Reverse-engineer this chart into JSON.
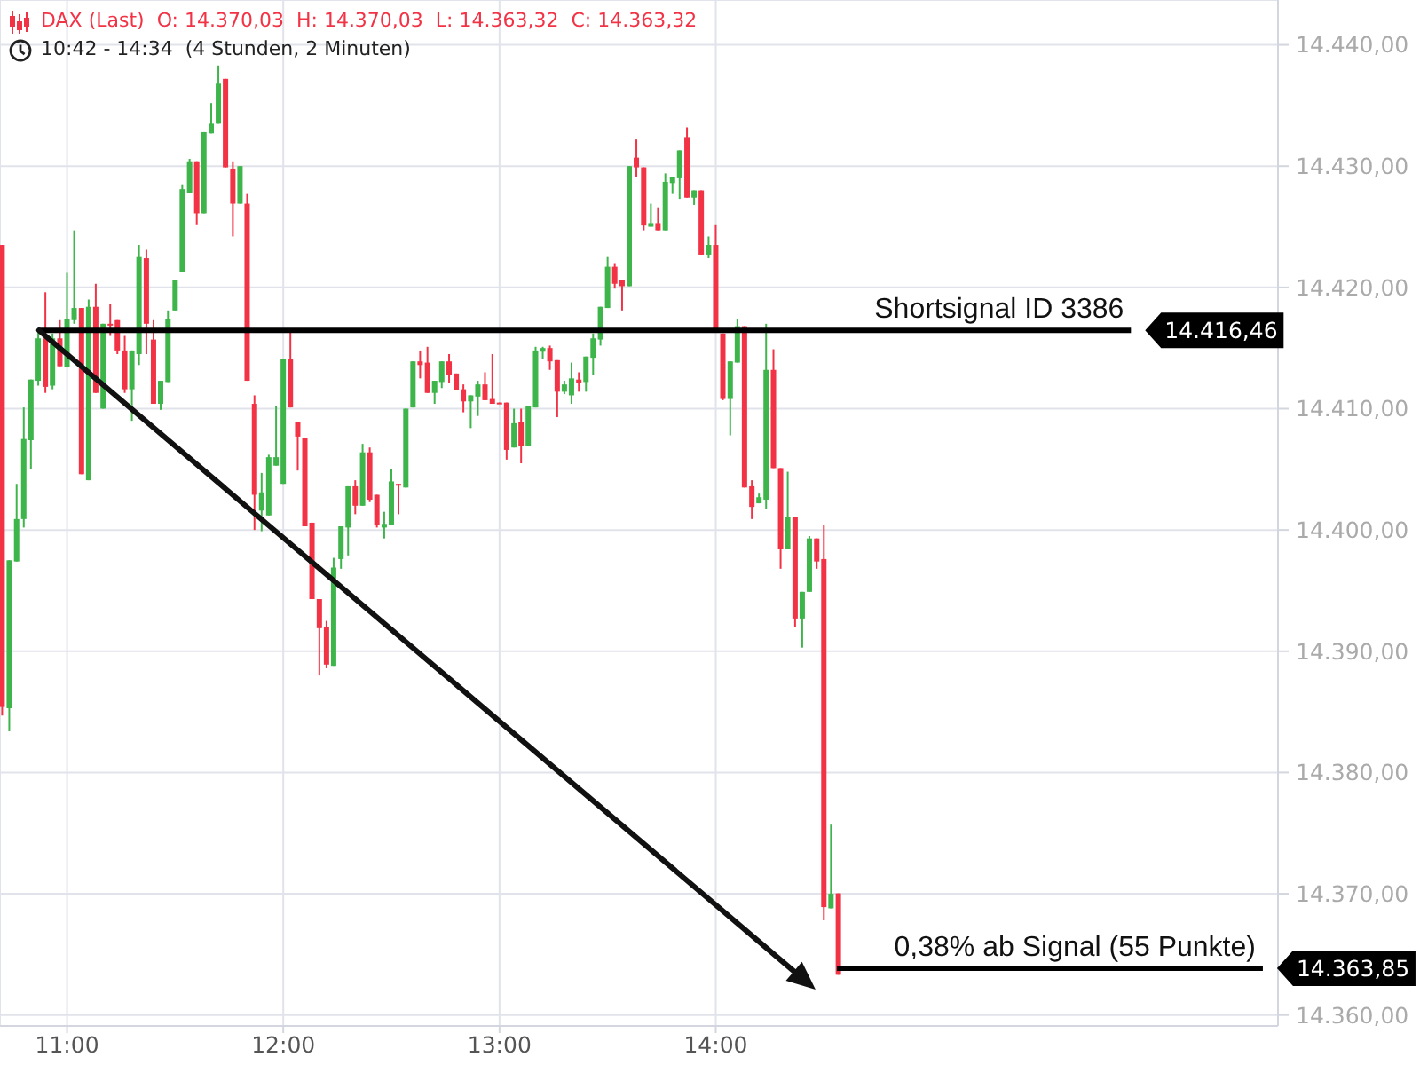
{
  "chart_data": {
    "type": "candlestick",
    "title": "DAX (Last)  O: 14.370,03  H: 14.370,03  L: 14.363,32  C: 14.363,32",
    "subtitle": "10:42 - 14:34  (4 Stunden, 2 Minuten)",
    "x": [
      10.7,
      10.733,
      10.767,
      10.8,
      10.833,
      10.867,
      10.9,
      10.933,
      10.967,
      11,
      11.033,
      11.067,
      11.1,
      11.133,
      11.167,
      11.2,
      11.233,
      11.267,
      11.3,
      11.333,
      11.367,
      11.4,
      11.433,
      11.467,
      11.5,
      11.533,
      11.567,
      11.6,
      11.633,
      11.667,
      11.7,
      11.733,
      11.767,
      11.8,
      11.833,
      11.867,
      11.9,
      11.933,
      11.967,
      12,
      12.033,
      12.067,
      12.1,
      12.133,
      12.167,
      12.2,
      12.233,
      12.267,
      12.3,
      12.333,
      12.367,
      12.4,
      12.433,
      12.467,
      12.5,
      12.533,
      12.567,
      12.6,
      12.633,
      12.667,
      12.7,
      12.733,
      12.767,
      12.8,
      12.833,
      12.867,
      12.9,
      12.933,
      12.967,
      13,
      13.033,
      13.067,
      13.1,
      13.133,
      13.167,
      13.2,
      13.233,
      13.267,
      13.3,
      13.333,
      13.367,
      13.4,
      13.433,
      13.467,
      13.5,
      13.533,
      13.567,
      13.6,
      13.633,
      13.667,
      13.7,
      13.733,
      13.767,
      13.8,
      13.833,
      13.867,
      13.9,
      13.933,
      13.967,
      14,
      14.033,
      14.067,
      14.1,
      14.133,
      14.167,
      14.2,
      14.233,
      14.267,
      14.3,
      14.333,
      14.367,
      14.4,
      14.433,
      14.467,
      14.5,
      14.533,
      14.567
    ],
    "ohlc": [
      [
        14423.5,
        14423.5,
        14384.7,
        14385.4
      ],
      [
        14385.3,
        14397.5,
        14383.4,
        14397.5
      ],
      [
        14397.4,
        14403.8,
        14397.4,
        14400.9
      ],
      [
        14400.9,
        14410.1,
        14400.2,
        14407.5
      ],
      [
        14407.4,
        14412.4,
        14405.0,
        14412.4
      ],
      [
        14412.3,
        14416.3,
        14411.9,
        14415.8
      ],
      [
        14415.8,
        14419.6,
        14411.3,
        14411.8
      ],
      [
        14411.9,
        14416.2,
        14411.6,
        14415.8
      ],
      [
        14415.8,
        14417.3,
        14413.5,
        14413.5
      ],
      [
        14413.4,
        14421.2,
        14413.4,
        14417.4
      ],
      [
        14417.3,
        14424.7,
        14417.0,
        14418.3
      ],
      [
        14418.3,
        14418.3,
        14404.6,
        14404.6
      ],
      [
        14404.1,
        14419.0,
        14404.1,
        14418.4
      ],
      [
        14418.4,
        14420.3,
        14411.3,
        14411.3
      ],
      [
        14410.0,
        14417.0,
        14410.0,
        14417.0
      ],
      [
        14417.0,
        14418.6,
        14416.0,
        14416.9
      ],
      [
        14417.3,
        14417.3,
        14414.5,
        14414.8
      ],
      [
        14414.8,
        14416.0,
        14411.3,
        14411.6
      ],
      [
        14411.6,
        14414.8,
        14409.0,
        14414.8
      ],
      [
        14414.5,
        14423.5,
        14413.6,
        14422.5
      ],
      [
        14422.4,
        14423.1,
        14414.5,
        14417.0
      ],
      [
        14415.7,
        14417.3,
        14410.4,
        14410.4
      ],
      [
        14410.4,
        14412.3,
        14409.9,
        14412.3
      ],
      [
        14412.2,
        14418.1,
        14412.2,
        14417.4
      ],
      [
        14418.1,
        14420.6,
        14418.1,
        14420.6
      ],
      [
        14421.3,
        14428.5,
        14421.3,
        14428.1
      ],
      [
        14427.8,
        14430.6,
        14427.8,
        14430.4
      ],
      [
        14430.4,
        14430.4,
        14425.2,
        14426.1
      ],
      [
        14426.1,
        14432.8,
        14426.1,
        14432.8
      ],
      [
        14432.7,
        14435.2,
        14432.7,
        14433.5
      ],
      [
        14433.5,
        14438.3,
        14433.5,
        14436.8
      ],
      [
        14437.2,
        14437.2,
        14429.9,
        14429.9
      ],
      [
        14429.8,
        14430.4,
        14424.2,
        14426.9
      ],
      [
        14426.9,
        14430.0,
        14426.9,
        14430.0
      ],
      [
        14426.9,
        14427.7,
        14412.3,
        14412.3
      ],
      [
        14410.4,
        14411.1,
        14400.0,
        14402.9
      ],
      [
        14401.6,
        14404.7,
        14399.9,
        14403.1
      ],
      [
        14401.2,
        14406.2,
        14401.2,
        14406.0
      ],
      [
        14405.3,
        14410.2,
        14405.3,
        14406.0
      ],
      [
        14403.8,
        14414.1,
        14403.8,
        14414.1
      ],
      [
        14414.1,
        14416.3,
        14410.1,
        14410.1
      ],
      [
        14408.9,
        14408.9,
        14404.9,
        14407.7
      ],
      [
        14407.6,
        14407.6,
        14400.3,
        14400.3
      ],
      [
        14400.6,
        14400.6,
        14394.3,
        14394.3
      ],
      [
        14394.3,
        14394.3,
        14388.0,
        14391.9
      ],
      [
        14392.0,
        14392.5,
        14388.6,
        14388.9
      ],
      [
        14388.8,
        14397.7,
        14388.8,
        14396.9
      ],
      [
        14397.6,
        14400.3,
        14396.8,
        14400.3
      ],
      [
        14400.2,
        14403.6,
        14397.9,
        14403.6
      ],
      [
        14403.6,
        14404.1,
        14401.3,
        14402.0
      ],
      [
        14402.0,
        14407.1,
        14402.0,
        14406.4
      ],
      [
        14406.4,
        14406.8,
        14402.3,
        14402.5
      ],
      [
        14402.9,
        14402.9,
        14400.2,
        14400.4
      ],
      [
        14400.2,
        14401.5,
        14399.3,
        14400.5
      ],
      [
        14400.4,
        14405.0,
        14400.4,
        14404.0
      ],
      [
        14403.8,
        14403.8,
        14401.3,
        14403.7
      ],
      [
        14403.5,
        14410.0,
        14403.5,
        14410.0
      ],
      [
        14410.1,
        14413.9,
        14410.1,
        14413.9
      ],
      [
        14413.9,
        14414.8,
        14412.5,
        14413.6
      ],
      [
        14413.8,
        14415.1,
        14411.3,
        14411.3
      ],
      [
        14411.3,
        14412.3,
        14410.4,
        14412.3
      ],
      [
        14412.2,
        14413.9,
        14411.7,
        14413.9
      ],
      [
        14413.9,
        14414.5,
        14412.1,
        14412.8
      ],
      [
        14412.9,
        14412.9,
        14411.5,
        14411.5
      ],
      [
        14411.6,
        14412.0,
        14409.7,
        14410.6
      ],
      [
        14410.6,
        14411.1,
        14408.4,
        14411.1
      ],
      [
        14411.0,
        14412.3,
        14409.4,
        14412.0
      ],
      [
        14412.0,
        14413.0,
        14410.7,
        14410.7
      ],
      [
        14410.8,
        14414.5,
        14410.4,
        14410.4
      ],
      [
        14410.5,
        14410.5,
        14410.4,
        14410.4
      ],
      [
        14410.5,
        14410.5,
        14405.8,
        14406.6
      ],
      [
        14406.8,
        14410.0,
        14406.8,
        14408.8
      ],
      [
        14408.9,
        14410.0,
        14405.5,
        14406.9
      ],
      [
        14406.9,
        14410.2,
        14406.9,
        14410.2
      ],
      [
        14410.1,
        14415.1,
        14410.1,
        14414.8
      ],
      [
        14414.7,
        14415.1,
        14414.1,
        14415.0
      ],
      [
        14415.0,
        14415.2,
        14413.2,
        14413.9
      ],
      [
        14414.0,
        14414.0,
        14409.3,
        14411.4
      ],
      [
        14411.4,
        14412.3,
        14411.2,
        14412.0
      ],
      [
        14411.1,
        14413.8,
        14410.4,
        14412.5
      ],
      [
        14412.4,
        14413.0,
        14411.4,
        14412.1
      ],
      [
        14412.2,
        14414.3,
        14411.4,
        14414.3
      ],
      [
        14414.2,
        14416.2,
        14412.8,
        14415.8
      ],
      [
        14415.7,
        14418.4,
        14415.2,
        14418.4
      ],
      [
        14418.3,
        14422.5,
        14418.3,
        14421.7
      ],
      [
        14421.7,
        14422.0,
        14419.9,
        14420.3
      ],
      [
        14420.6,
        14420.6,
        14418.1,
        14420.1
      ],
      [
        14420.1,
        14430.0,
        14420.1,
        14430.0
      ],
      [
        14430.7,
        14432.2,
        14429.1,
        14429.9
      ],
      [
        14429.9,
        14429.9,
        14424.7,
        14425.1
      ],
      [
        14425.0,
        14426.9,
        14425.0,
        14425.3
      ],
      [
        14425.3,
        14426.6,
        14424.7,
        14424.7
      ],
      [
        14424.7,
        14429.4,
        14424.7,
        14428.7
      ],
      [
        14428.6,
        14429.1,
        14427.7,
        14429.1
      ],
      [
        14429.0,
        14431.3,
        14427.3,
        14431.3
      ],
      [
        14432.4,
        14433.2,
        14427.4,
        14427.4
      ],
      [
        14427.4,
        14428.0,
        14426.8,
        14428.0
      ],
      [
        14428.0,
        14428.0,
        14422.7,
        14422.7
      ],
      [
        14422.7,
        14424.2,
        14422.4,
        14423.5
      ],
      [
        14423.5,
        14425.2,
        14416.4,
        14416.4
      ],
      [
        14416.2,
        14416.2,
        14410.7,
        14410.8
      ],
      [
        14410.8,
        14413.9,
        14407.8,
        14413.9
      ],
      [
        14413.8,
        14417.4,
        14413.8,
        14416.8
      ],
      [
        14416.8,
        14416.8,
        14403.5,
        14403.5
      ],
      [
        14403.6,
        14404.1,
        14400.9,
        14401.9
      ],
      [
        14402.2,
        14403.0,
        14402.2,
        14402.7
      ],
      [
        14402.5,
        14417.0,
        14401.7,
        14413.2
      ],
      [
        14413.2,
        14414.9,
        14405.1,
        14405.1
      ],
      [
        14405.1,
        14405.1,
        14396.8,
        14398.4
      ],
      [
        14398.4,
        14404.8,
        14398.4,
        14401.1
      ],
      [
        14401.1,
        14401.1,
        14392.0,
        14392.7
      ],
      [
        14392.7,
        14394.9,
        14390.3,
        14394.9
      ],
      [
        14394.9,
        14399.5,
        14394.9,
        14399.3
      ],
      [
        14399.3,
        14399.3,
        14396.8,
        14397.4
      ],
      [
        14397.6,
        14400.4,
        14367.8,
        14368.9
      ],
      [
        14368.8,
        14375.7,
        14368.8,
        14370.0
      ],
      [
        14370.03,
        14370.03,
        14363.32,
        14363.32
      ]
    ],
    "colors": [
      "#f23346",
      "#3db54a",
      "#3db54a",
      "#3db54a",
      "#3db54a",
      "#3db54a",
      "#f23346",
      "#3db54a",
      "#f23346",
      "#3db54a",
      "#3db54a",
      "#f23346",
      "#3db54a",
      "#f23346",
      "#3db54a",
      "#f23346",
      "#f23346",
      "#f23346",
      "#3db54a",
      "#3db54a",
      "#f23346",
      "#f23346",
      "#3db54a",
      "#3db54a",
      "#3db54a",
      "#3db54a",
      "#3db54a",
      "#f23346",
      "#3db54a",
      "#3db54a",
      "#3db54a",
      "#f23346",
      "#f23346",
      "#3db54a",
      "#f23346",
      "#f23346",
      "#3db54a",
      "#3db54a",
      "#3db54a",
      "#3db54a",
      "#f23346",
      "#f23346",
      "#f23346",
      "#f23346",
      "#f23346",
      "#f23346",
      "#3db54a",
      "#3db54a",
      "#3db54a",
      "#f23346",
      "#3db54a",
      "#f23346",
      "#f23346",
      "#3db54a",
      "#3db54a",
      "#f23346",
      "#3db54a",
      "#3db54a",
      "#f23346",
      "#f23346",
      "#3db54a",
      "#3db54a",
      "#f23346",
      "#f23346",
      "#f23346",
      "#3db54a",
      "#3db54a",
      "#f23346",
      "#f23346",
      "#f23346",
      "#f23346",
      "#3db54a",
      "#f23346",
      "#3db54a",
      "#3db54a",
      "#3db54a",
      "#f23346",
      "#f23346",
      "#3db54a",
      "#3db54a",
      "#f23346",
      "#3db54a",
      "#3db54a",
      "#3db54a",
      "#3db54a",
      "#f23346",
      "#f23346",
      "#3db54a",
      "#f23346",
      "#f23346",
      "#3db54a",
      "#f23346",
      "#3db54a",
      "#3db54a",
      "#3db54a",
      "#f23346",
      "#3db54a",
      "#f23346",
      "#3db54a",
      "#f23346",
      "#f23346",
      "#3db54a",
      "#3db54a",
      "#f23346",
      "#f23346",
      "#3db54a",
      "#3db54a",
      "#f23346",
      "#f23346",
      "#3db54a",
      "#f23346",
      "#3db54a",
      "#3db54a",
      "#f23346",
      "#f23346",
      "#3db54a",
      "#f23346"
    ],
    "series": [
      {
        "type": "line",
        "name": "Shortsignal ID 3386",
        "x": [
          10.87,
          15.92
        ],
        "values": [
          14416.46,
          14416.46
        ],
        "color": "#000000",
        "value_labels": [
          null,
          "14.416,46"
        ]
      },
      {
        "type": "line",
        "name": "0,38% ab Signal (55 Punkte)",
        "x": [
          14.56,
          16.53
        ],
        "values": [
          14363.85,
          14363.85
        ],
        "color": "#000000",
        "value_labels": [
          null,
          "14.363,85"
        ]
      }
    ],
    "xlim": [
      10.69,
      16.6
    ],
    "xticks": [
      {
        "value": 11,
        "label": "11:00"
      },
      {
        "value": 12,
        "label": "12:00"
      },
      {
        "value": 13,
        "label": "13:00"
      },
      {
        "value": 14,
        "label": "14:00"
      }
    ],
    "ylim": [
      14359.1,
      14443.7
    ],
    "yticks": [
      {
        "value": 14360,
        "label": "14.360,00"
      },
      {
        "value": 14370,
        "label": "14.370,00"
      },
      {
        "value": 14380,
        "label": "14.380,00"
      },
      {
        "value": 14390,
        "label": "14.390,00"
      },
      {
        "value": 14400,
        "label": "14.400,00"
      },
      {
        "value": 14410,
        "label": "14.410,00"
      },
      {
        "value": 14420,
        "label": "14.420,00"
      },
      {
        "value": 14430,
        "label": "14.430,00"
      },
      {
        "value": 14440,
        "label": "14.440,00"
      }
    ],
    "grid": true
  }
}
